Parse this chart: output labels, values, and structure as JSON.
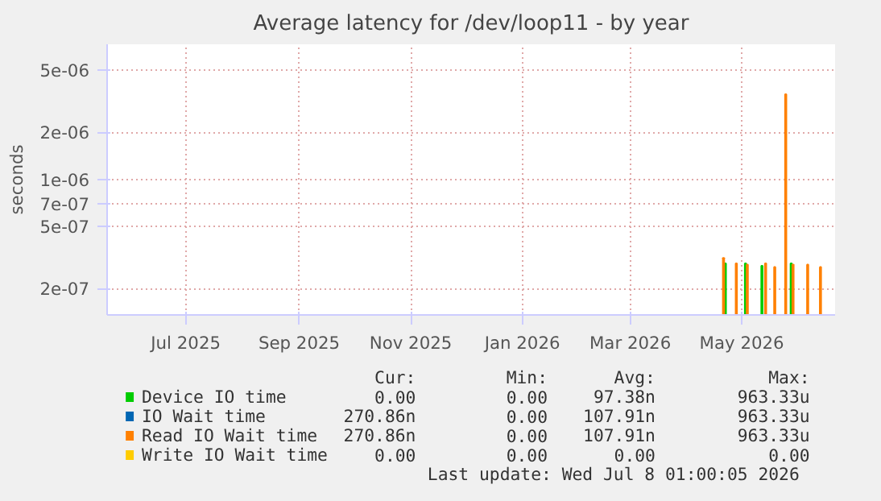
{
  "chart_data": {
    "type": "bar",
    "title": "Average latency for /dev/loop11 - by year",
    "ylabel": "seconds",
    "log": "y",
    "grid": true,
    "legend": "bottom",
    "xlim": [
      "2025-06-03",
      "2026-07-06"
    ],
    "xticks": [
      {
        "value": "2025-07-16",
        "label": "Jul 2025"
      },
      {
        "value": "2025-09-16",
        "label": "Sep 2025"
      },
      {
        "value": "2025-11-16",
        "label": "Nov 2025"
      },
      {
        "value": "2026-01-16",
        "label": "Jan 2026"
      },
      {
        "value": "2026-03-16",
        "label": "Mar 2026"
      },
      {
        "value": "2026-05-16",
        "label": "May 2026"
      }
    ],
    "ylim": [
      1.36e-07,
      7.3e-06
    ],
    "yticks": [
      {
        "value": 2e-07,
        "label": "2e-07"
      },
      {
        "value": 5e-07,
        "label": "5e-07"
      },
      {
        "value": 7e-07,
        "label": "7e-07"
      },
      {
        "value": 1e-06,
        "label": "1e-06"
      },
      {
        "value": 2e-06,
        "label": "2e-06"
      },
      {
        "value": 5e-06,
        "label": "5e-06"
      }
    ],
    "series": [
      {
        "name": "Device IO time",
        "color": "#00cc00",
        "x": [
          "2026-05-07",
          "2026-05-18",
          "2026-05-27",
          "2026-06-12"
        ],
        "values": [
          2.9e-07,
          2.9e-07,
          2.8e-07,
          2.9e-07
        ]
      },
      {
        "name": "IO Wait time",
        "color": "#0066b3"
      },
      {
        "name": "Read IO Wait time",
        "color": "#ff8000",
        "x": [
          "2026-05-06",
          "2026-05-13",
          "2026-05-19",
          "2026-05-29",
          "2026-06-03",
          "2026-06-09",
          "2026-06-13",
          "2026-06-21",
          "2026-06-28"
        ],
        "values": [
          3.15e-07,
          2.9e-07,
          2.85e-07,
          2.9e-07,
          2.75e-07,
          3.5e-06,
          2.85e-07,
          2.85e-07,
          2.75e-07
        ]
      },
      {
        "name": "Write IO Wait time",
        "color": "#ffcc00"
      }
    ],
    "annotations": [
      "Cur:",
      "Min:",
      "Avg:",
      "Max:",
      "0.00",
      "0.00",
      "97.38n",
      "963.33u",
      "270.86n",
      "0.00",
      "107.91n",
      "963.33u",
      "270.86n",
      "0.00",
      "107.91n",
      "963.33u",
      "0.00",
      "0.00",
      "0.00",
      "0.00",
      "Last update: Wed Jul  8 01:00:05 2026"
    ]
  }
}
